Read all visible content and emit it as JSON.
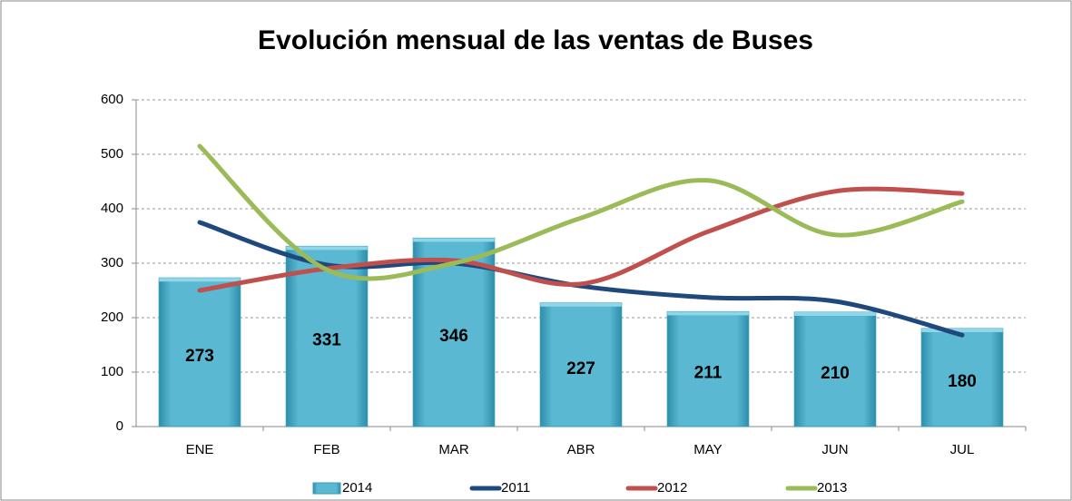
{
  "chart_data": {
    "type": "bar_line",
    "title": "Evolución mensual de las ventas de Buses",
    "categories": [
      "ENE",
      "FEB",
      "MAR",
      "ABR",
      "MAY",
      "JUN",
      "JUL"
    ],
    "series": [
      {
        "name": "2014",
        "type": "bar",
        "color": "#4bacc6",
        "values": [
          273,
          331,
          346,
          227,
          211,
          210,
          180
        ]
      },
      {
        "name": "2011",
        "type": "line",
        "color": "#1f497d",
        "values": [
          375,
          297,
          300,
          258,
          237,
          230,
          168
        ]
      },
      {
        "name": "2012",
        "type": "line",
        "color": "#c0504d",
        "values": [
          250,
          290,
          305,
          262,
          358,
          432,
          428
        ]
      },
      {
        "name": "2013",
        "type": "line",
        "color": "#9bbb59",
        "values": [
          515,
          288,
          300,
          383,
          452,
          352,
          413
        ]
      }
    ],
    "ylim": [
      0,
      600
    ],
    "yticks": [
      0,
      100,
      200,
      300,
      400,
      500,
      600
    ],
    "grid": true,
    "legend": "bottom"
  }
}
